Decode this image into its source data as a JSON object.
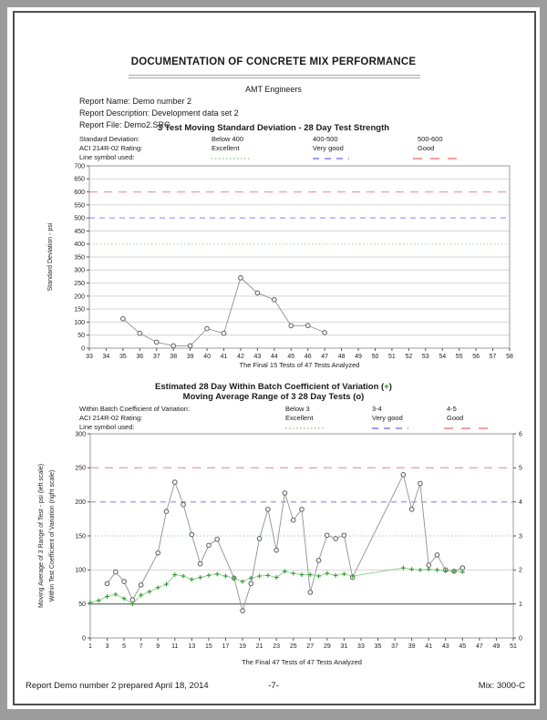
{
  "page": {
    "title": "DOCUMENTATION OF CONCRETE MIX PERFORMANCE",
    "org": "AMT Engineers",
    "report_name": "Report Name: Demo number 2",
    "report_description": "Report Description: Development data set 2",
    "report_file": "Report File: Demo2.SRC",
    "footer_left": "Report Demo number 2 prepared April 18, 2014",
    "footer_center": "-7-",
    "footer_right": "Mix: 3000-C"
  },
  "colors": {
    "excellent_line": "#b5d9b5",
    "very_good_line": "#9e9ef5",
    "good_line": "#f2a0a0",
    "range_series_gray": "#909090",
    "cv_series_green": "#2e9b2e",
    "page_frame": "#9c9c9c"
  },
  "chart_data": [
    {
      "type": "line",
      "title": "3 Test Moving Standard Deviation - 28 Day Test Strength",
      "xlabel": "The Final 15 Tests of 47 Tests Analyzed",
      "ylabel": "Standard Deviation - psi",
      "legend": {
        "row1_label": "Standard Deviation:",
        "row1_c1": "Below 400",
        "row1_c2": "400-500",
        "row1_c3": "500-600",
        "row2_label": "ACI 214R-02 Rating:",
        "row2_c1": "Excellent",
        "row2_c2": "Very good",
        "row2_c3": "Good",
        "row3_label": "Line symbol used:"
      },
      "xlim": [
        33,
        58
      ],
      "ylim": [
        0,
        700
      ],
      "x_ticks": [
        33,
        34,
        35,
        36,
        37,
        38,
        39,
        40,
        41,
        42,
        43,
        44,
        45,
        46,
        47,
        48,
        49,
        50,
        51,
        52,
        53,
        54,
        55,
        56,
        57,
        58
      ],
      "y_ticks": [
        0,
        50,
        100,
        150,
        200,
        250,
        300,
        350,
        400,
        450,
        500,
        550,
        600,
        650,
        700
      ],
      "grid": true,
      "grid_color": "#d6d6d6",
      "reference_lines": [
        {
          "y": 400,
          "color": "#b5d9b5",
          "dash": "1.5 2.5"
        },
        {
          "y": 500,
          "color": "#9e9ef5",
          "dash": "6 5"
        },
        {
          "y": 600,
          "color": "#f2a0a0",
          "dash": "9 7"
        }
      ],
      "series": [
        {
          "name": "3 Test Moving Standard Deviation",
          "marker": "o",
          "line_color": "#909090",
          "marker_color": "#5a5a5a",
          "x": [
            35,
            36,
            37,
            38,
            39,
            40,
            41,
            42,
            43,
            44,
            45,
            46,
            47
          ],
          "y": [
            113,
            57,
            23,
            9,
            9,
            75,
            57,
            270,
            212,
            186,
            86,
            87,
            60
          ]
        }
      ]
    },
    {
      "type": "line",
      "title_line1_pre": "Estimated 28 Day Within Batch Coefficient of Variation (",
      "title_line1_sym": "+",
      "title_line1_post": ")",
      "title_line2": "Moving Average Range of 3 28 Day Tests (o)",
      "xlabel": "The Final 47 Tests of 47 Tests Analyzed",
      "ylabel_left": "Moving Average of 3 Range of Test - psi (left scale)",
      "ylabel_right": "Within Test Coefficient of Variation (right scale)",
      "legend": {
        "row1_label": "Within Batch Coefficient of Variation:",
        "row1_c1": "Below 3",
        "row1_c2": "3-4",
        "row1_c3": "4-5",
        "row2_label": "ACI 214R-02 Rating:",
        "row2_c1": "Excellent",
        "row2_c2": "Very good",
        "row2_c3": "Good",
        "row3_label": "Line symbol used:"
      },
      "xlim": [
        1,
        51
      ],
      "ylim": [
        0,
        300
      ],
      "ylim2": [
        0,
        6
      ],
      "x_ticks": [
        1,
        3,
        5,
        7,
        9,
        11,
        13,
        15,
        17,
        19,
        21,
        23,
        25,
        27,
        29,
        31,
        33,
        35,
        37,
        39,
        41,
        43,
        45,
        47,
        49,
        51
      ],
      "y_ticks": [
        0,
        50,
        100,
        150,
        200,
        250,
        300
      ],
      "y2_ticks": [
        0,
        1,
        2,
        3,
        4,
        5,
        6
      ],
      "grid": true,
      "grid_color": "#d6d6d6",
      "reference_lines": [
        {
          "y": 50,
          "color": "#7a7a7a"
        },
        {
          "y": 150,
          "color": "#b5d9b5",
          "dash": "1.5 2.5"
        },
        {
          "y": 200,
          "color": "#9e9ef5",
          "dash": "6 5"
        },
        {
          "y": 250,
          "color": "#f2a0a0",
          "dash": "9 7"
        }
      ],
      "series": [
        {
          "name": "Moving Average Range of 3 28 Day Tests",
          "marker": "o",
          "axis": "left",
          "line_color": "#909090",
          "marker_color": "#5a5a5a",
          "x": [
            3,
            4,
            5,
            6,
            7,
            9,
            10,
            11,
            12,
            13,
            14,
            15,
            16,
            18,
            19,
            20,
            21,
            22,
            23,
            24,
            25,
            26,
            27,
            28,
            29,
            30,
            31,
            32,
            38,
            39,
            40,
            41,
            42,
            43,
            44,
            45
          ],
          "y": [
            80,
            97,
            83,
            56,
            78,
            125,
            186,
            229,
            196,
            152,
            109,
            136,
            145,
            88,
            40,
            80,
            146,
            189,
            129,
            213,
            173,
            189,
            67,
            114,
            151,
            146,
            151,
            89,
            240,
            189,
            227,
            107,
            122,
            100,
            98,
            103
          ]
        },
        {
          "name": "Estimated 28 Day Within Batch Coefficient of Variation",
          "marker": "+",
          "axis": "right",
          "line_color": "#8fcc8f",
          "marker_color": "#2e9b2e",
          "x": [
            1,
            2,
            3,
            4,
            5,
            6,
            7,
            8,
            9,
            10,
            11,
            12,
            13,
            14,
            15,
            16,
            17,
            18,
            19,
            20,
            21,
            22,
            23,
            24,
            25,
            26,
            27,
            28,
            29,
            30,
            31,
            32,
            38,
            39,
            40,
            41,
            42,
            43,
            44,
            45
          ],
          "y": [
            1.04,
            1.1,
            1.22,
            1.28,
            1.16,
            1.0,
            1.26,
            1.36,
            1.48,
            1.58,
            1.86,
            1.82,
            1.72,
            1.78,
            1.84,
            1.88,
            1.82,
            1.76,
            1.66,
            1.76,
            1.82,
            1.84,
            1.78,
            1.96,
            1.9,
            1.86,
            1.86,
            1.82,
            1.9,
            1.84,
            1.88,
            1.82,
            2.06,
            2.02,
            2.0,
            2.02,
            2.0,
            1.98,
            1.96,
            1.94
          ]
        }
      ]
    }
  ]
}
